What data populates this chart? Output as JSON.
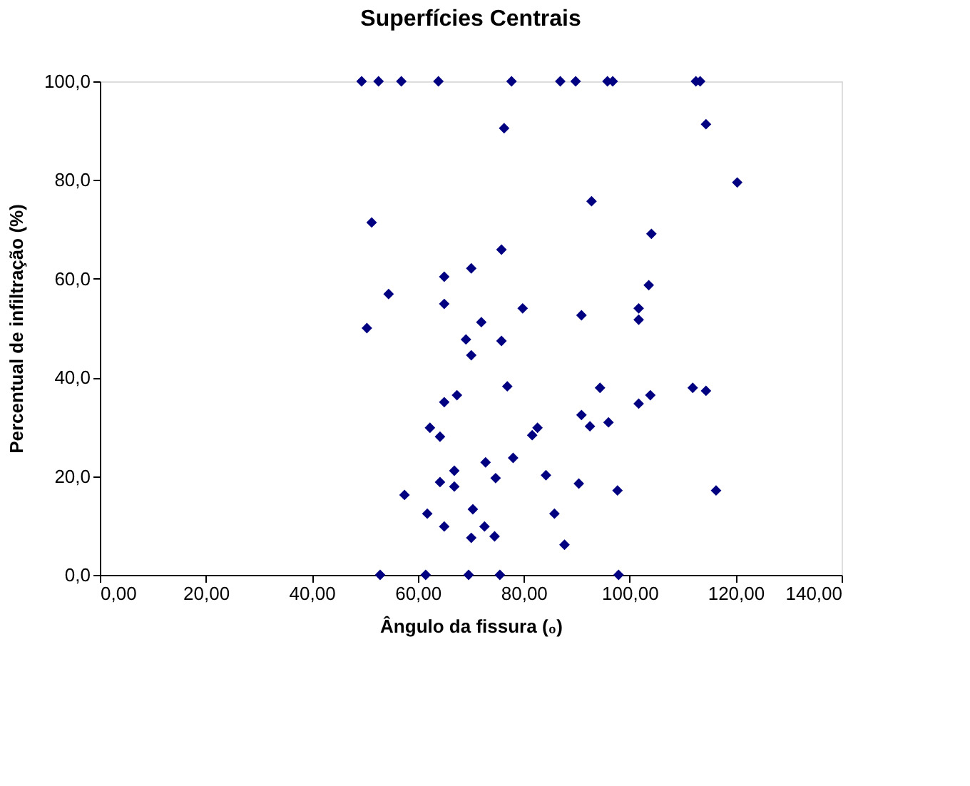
{
  "chart_data": {
    "type": "scatter",
    "title": "Superfícies Centrais",
    "xlabel": "Ângulo da fissura (₀)",
    "ylabel": "Percentual de infiltração (%)",
    "x": [
      49.4,
      52.6,
      56.9,
      63.9,
      77.7,
      86.9,
      89.8,
      95.8,
      96.8,
      112.5,
      113.3,
      76.3,
      114.4,
      120.3,
      92.8,
      51.3,
      104.1,
      75.8,
      70.1,
      65.0,
      103.6,
      54.5,
      65.0,
      79.8,
      101.7,
      101.7,
      90.9,
      72.0,
      50.4,
      69.1,
      75.8,
      70.1,
      76.9,
      94.4,
      65.0,
      67.4,
      90.9,
      92.5,
      103.9,
      101.7,
      111.9,
      114.4,
      96.0,
      90.4,
      97.7,
      116.3,
      85.8,
      87.7,
      97.9,
      62.3,
      64.2,
      82.6,
      81.6,
      72.8,
      78.0,
      66.9,
      64.2,
      66.9,
      74.7,
      84.2,
      57.5,
      61.8,
      70.4,
      65.0,
      72.6,
      74.5,
      70.1,
      52.9,
      61.5,
      69.6,
      75.5
    ],
    "series": [
      {
        "color": "#000080",
        "values": [
          100,
          100,
          100,
          100,
          100,
          100,
          100,
          100,
          100,
          100,
          100,
          90.5,
          91.3,
          79.5,
          75.7,
          71.4,
          69.1,
          65.9,
          62.1,
          60.4,
          58.7,
          56.9,
          54.9,
          54.0,
          54.0,
          51.7,
          52.6,
          51.2,
          50.0,
          47.7,
          47.4,
          44.5,
          38.2,
          37.9,
          35.0,
          36.4,
          32.4,
          30.1,
          36.4,
          34.7,
          37.9,
          37.3,
          30.9,
          18.5,
          17.1,
          17.1,
          12.4,
          6.1,
          0,
          29.8,
          28.0,
          29.8,
          28.3,
          22.8,
          23.7,
          21.1,
          18.8,
          17.9,
          19.6,
          20.2,
          16.2,
          12.4,
          13.3,
          9.8,
          9.8,
          7.8,
          7.5,
          0,
          0,
          0,
          0
        ]
      }
    ],
    "marker": "diamond",
    "xlim": [
      0,
      140
    ],
    "xticks": [
      {
        "value": 0,
        "label": "0,00"
      },
      {
        "value": 20,
        "label": "20,00"
      },
      {
        "value": 40,
        "label": "40,00"
      },
      {
        "value": 60,
        "label": "60,00"
      },
      {
        "value": 80,
        "label": "80,00"
      },
      {
        "value": 100,
        "label": "100,00"
      },
      {
        "value": 120,
        "label": "120,00"
      },
      {
        "value": 140,
        "label": "140,00"
      }
    ],
    "ylim": [
      0,
      100
    ],
    "yticks": [
      {
        "value": 0,
        "label": "0,0"
      },
      {
        "value": 20,
        "label": "20,0"
      },
      {
        "value": 40,
        "label": "40,0"
      },
      {
        "value": 60,
        "label": "60,0"
      },
      {
        "value": 80,
        "label": "80,0"
      },
      {
        "value": 100,
        "label": "100,0"
      }
    ],
    "grid": false,
    "legend": false
  }
}
